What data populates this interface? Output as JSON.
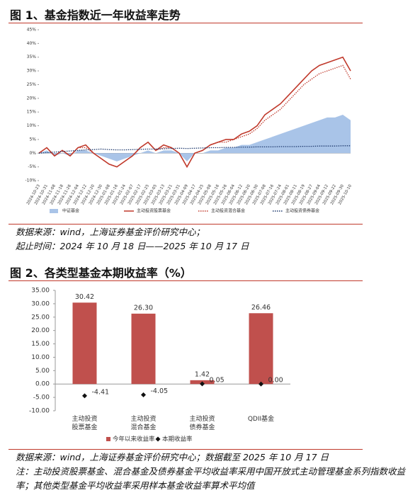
{
  "figure1": {
    "title": "图 1、基金指数近一年收益率走势",
    "notes": [
      "数据来源：wind，上海证券基金评价研究中心；",
      "起止时间：2024 年 10 月 18 日——2025 年 10 月 17 日"
    ]
  },
  "figure2": {
    "title": "图 2、各类型基金本期收益率（%）",
    "notes": [
      "数据来源：wind，上海证券基金评价研究中心；数据截至 2025 年 10 月 17 日",
      "注：主动投资股票基金、混合基金及债券基金平均收益率采用中国开放式主动管理基金系列指数收益率；其他类型基金平均收益率采用样本基金收益率算术平均值"
    ]
  },
  "chart_data": [
    {
      "type": "line",
      "categories": [
        "2024-10-23",
        "2024-10-31",
        "2024-11-08",
        "2024-11-18",
        "2024-11-26",
        "2024-12-04",
        "2024-12-12",
        "2024-12-20",
        "2024-12-30",
        "2025-01-08",
        "2025-01-16",
        "2025-01-24",
        "2025-02-07",
        "2025-02-17",
        "2025-02-25",
        "2025-03-05",
        "2025-03-13",
        "2025-03-21",
        "2025-03-31",
        "2025-04-09",
        "2025-04-17",
        "2025-04-25",
        "2025-05-08",
        "2025-05-16",
        "2025-05-26",
        "2025-06-04",
        "2025-06-12",
        "2025-06-20",
        "2025-06-30",
        "2025-07-08",
        "2025-07-16",
        "2025-07-24",
        "2025-08-01",
        "2025-08-11",
        "2025-08-19",
        "2025-08-27",
        "2025-09-04",
        "2025-09-12",
        "2025-09-22",
        "2025-09-30",
        "2025-10-10"
      ],
      "series": [
        {
          "name": "中证基金",
          "color": "#a9c4e8",
          "style": "area",
          "values": [
            0,
            1,
            -1,
            0,
            -1,
            1,
            1,
            0,
            -1,
            -2,
            -3,
            -2,
            -1,
            0,
            1,
            0,
            1,
            1,
            0,
            -3,
            0,
            0,
            1,
            1,
            2,
            2,
            3,
            3,
            4,
            5,
            6,
            7,
            8,
            9,
            10,
            11,
            12,
            13,
            13,
            14,
            12
          ]
        },
        {
          "name": "主动投资股票基金",
          "color": "#c0392b",
          "style": "solid",
          "values": [
            0,
            2,
            -1,
            1,
            -1,
            2,
            3,
            0,
            -2,
            -4,
            -5,
            -3,
            -1,
            2,
            4,
            1,
            3,
            2,
            0,
            -5,
            0,
            1,
            3,
            4,
            5,
            5,
            7,
            8,
            10,
            14,
            16,
            18,
            21,
            24,
            27,
            30,
            32,
            33,
            34,
            35,
            30
          ]
        },
        {
          "name": "主动投资混合基金",
          "color": "#c0392b",
          "style": "dotted",
          "values": [
            0,
            2,
            -1,
            1,
            -1,
            2,
            2,
            0,
            -2,
            -4,
            -5,
            -3,
            -1,
            2,
            4,
            1,
            2,
            2,
            0,
            -5,
            0,
            1,
            3,
            4,
            4,
            5,
            6,
            7,
            9,
            12,
            14,
            16,
            19,
            22,
            25,
            27,
            29,
            30,
            31,
            32,
            27
          ]
        },
        {
          "name": "主动投资债券基金",
          "color": "#1f3a6e",
          "style": "dotted",
          "values": [
            0,
            0.2,
            0.4,
            0.6,
            0.8,
            1,
            1.2,
            1.3,
            1.5,
            1.3,
            1.2,
            1.2,
            1.3,
            1.4,
            1.5,
            1.5,
            1.6,
            1.7,
            1.8,
            1.7,
            1.8,
            1.9,
            2,
            2,
            2.1,
            2.1,
            2.2,
            2.2,
            2.3,
            2.3,
            2.3,
            2.4,
            2.4,
            2.4,
            2.5,
            2.5,
            2.6,
            2.6,
            2.6,
            2.7,
            2.7
          ]
        }
      ],
      "ylim": [
        -10,
        45
      ],
      "yticks": [
        {
          "value": -10,
          "label": "-10%"
        },
        {
          "value": -5,
          "label": "-5%"
        },
        {
          "value": 0,
          "label": "0%"
        },
        {
          "value": 5,
          "label": "5%"
        },
        {
          "value": 10,
          "label": "10%"
        },
        {
          "value": 15,
          "label": "15%"
        },
        {
          "value": 20,
          "label": "20%"
        },
        {
          "value": 25,
          "label": "25%"
        },
        {
          "value": 30,
          "label": "30%"
        },
        {
          "value": 35,
          "label": "35%"
        },
        {
          "value": 40,
          "label": "40%"
        },
        {
          "value": 45,
          "label": "45%"
        }
      ],
      "legend": "bottom"
    },
    {
      "type": "bar",
      "categories": [
        "主动投资\n股票基金",
        "主动投资\n混合基金",
        "主动投资\n债券基金",
        "QDII基金"
      ],
      "series": [
        {
          "name": "今年以来收益率",
          "color": "#c0504d",
          "mark": "bar",
          "values": [
            30.42,
            26.3,
            1.42,
            26.46
          ],
          "value_labels": [
            "30.42",
            "26.30",
            "1.42",
            "26.46"
          ]
        },
        {
          "name": "本期收益率",
          "color": "#111111",
          "mark": "diamond",
          "values": [
            -4.41,
            -4.05,
            0.05,
            0
          ],
          "value_labels": [
            "-4.41",
            "-4.05",
            "0.05",
            "0.00"
          ]
        }
      ],
      "ylim": [
        -10,
        35
      ],
      "yticks": [
        {
          "value": -10,
          "label": "-10.00"
        },
        {
          "value": -5,
          "label": "-5.00"
        },
        {
          "value": 0,
          "label": "0.00"
        },
        {
          "value": 5,
          "label": "5.00"
        },
        {
          "value": 10,
          "label": "10.00"
        },
        {
          "value": 15,
          "label": "15.00"
        },
        {
          "value": 20,
          "label": "20.00"
        },
        {
          "value": 25,
          "label": "25.00"
        },
        {
          "value": 30,
          "label": "30.00"
        },
        {
          "value": 35,
          "label": "35.00"
        }
      ],
      "legend": "bottom"
    }
  ]
}
